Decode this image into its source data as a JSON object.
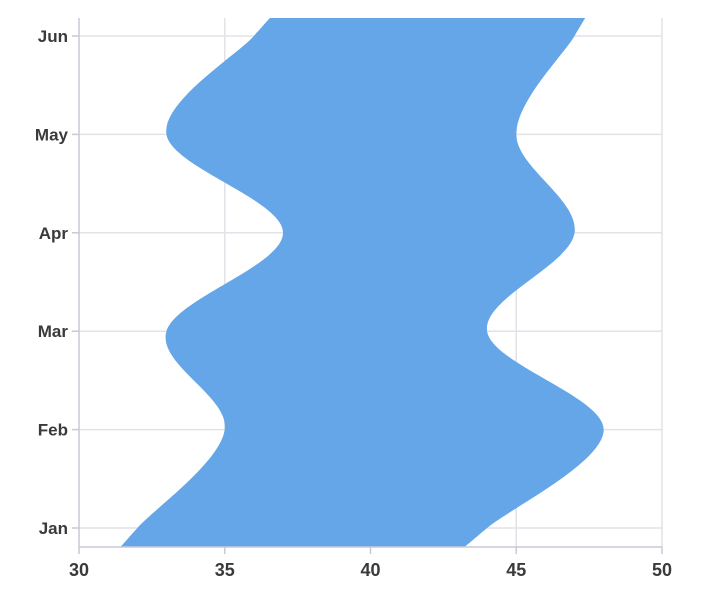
{
  "chart_data": {
    "type": "area",
    "orientation": "horizontal-range",
    "title": "",
    "xlabel": "",
    "ylabel": "",
    "categories": [
      "Jan",
      "Feb",
      "Mar",
      "Apr",
      "May",
      "Jun"
    ],
    "x_ticks": [
      30,
      35,
      40,
      45,
      50
    ],
    "xlim": [
      30,
      50
    ],
    "grid": true,
    "legend": "none",
    "series": [
      {
        "low": [
          32,
          35,
          33,
          37,
          33,
          36
        ],
        "high": [
          44,
          48,
          44,
          47,
          45,
          47
        ],
        "color": "#64a6e8"
      }
    ],
    "colors": {
      "fill": "#64a6e8",
      "grid": "#e2e2e8",
      "axis": "#c8c8d6",
      "text": "#3a3a3a"
    }
  }
}
